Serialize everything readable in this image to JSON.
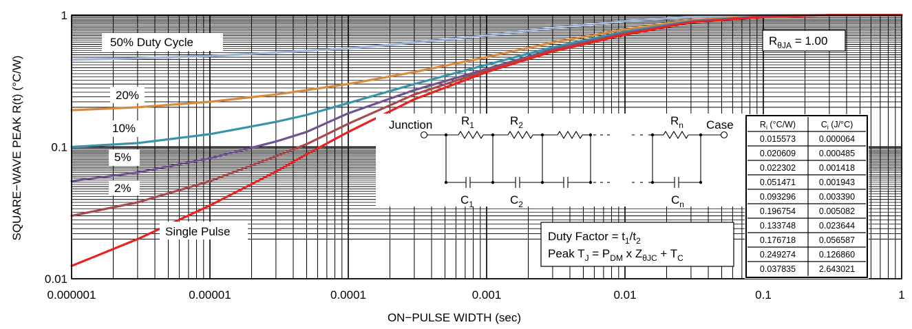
{
  "chart_data": {
    "type": "line",
    "title": "",
    "xlabel": "ON−PULSE WIDTH (sec)",
    "ylabel": "SQUARE−WAVE PEAK R(t) (°C/W)",
    "x_scale": "log",
    "y_scale": "log",
    "xlim": [
      1e-06,
      1
    ],
    "ylim": [
      0.01,
      1
    ],
    "grid": true,
    "x_ticks": [
      "0.000001",
      "0.00001",
      "0.0001",
      "0.001",
      "0.01",
      "0.1",
      "1"
    ],
    "y_ticks": [
      "0.01",
      "0.1",
      "1"
    ],
    "colors": {
      "50% Duty Cycle": "#9fb3d6",
      "20%": "#d88a3c",
      "10%": "#3a93a8",
      "5%": "#6e5391",
      "2%": "#a84a4a",
      "Single Pulse": "#e8231f"
    },
    "series": [
      {
        "name": "50% Duty Cycle",
        "x": [
          1e-06,
          3e-06,
          1e-05,
          3e-05,
          0.0001,
          0.0003,
          0.001,
          0.003,
          0.01,
          0.03,
          0.1,
          0.3,
          1
        ],
        "y": [
          0.46,
          0.47,
          0.49,
          0.52,
          0.56,
          0.62,
          0.7,
          0.8,
          0.9,
          0.97,
          1.0,
          1.0,
          1.0
        ]
      },
      {
        "name": "20%",
        "x": [
          1e-06,
          3e-06,
          1e-05,
          3e-05,
          5e-05,
          0.0001,
          0.0003,
          0.001,
          0.003,
          0.01,
          0.03,
          0.1,
          0.3,
          1
        ],
        "y": [
          0.19,
          0.2,
          0.22,
          0.25,
          0.27,
          0.3,
          0.37,
          0.48,
          0.62,
          0.78,
          0.92,
          0.99,
          1.0,
          1.0
        ]
      },
      {
        "name": "10%",
        "x": [
          1e-06,
          3e-06,
          1e-05,
          3e-05,
          5e-05,
          0.0001,
          0.0003,
          0.001,
          0.003,
          0.01,
          0.03,
          0.1,
          0.3,
          1
        ],
        "y": [
          0.1,
          0.107,
          0.125,
          0.155,
          0.175,
          0.215,
          0.3,
          0.42,
          0.57,
          0.75,
          0.9,
          0.98,
          1.0,
          1.0
        ]
      },
      {
        "name": "5%",
        "x": [
          1e-06,
          3e-06,
          1e-05,
          3e-05,
          5e-05,
          0.0001,
          0.0003,
          0.001,
          0.003,
          0.01,
          0.03,
          0.1,
          0.3,
          1
        ],
        "y": [
          0.055,
          0.064,
          0.082,
          0.11,
          0.13,
          0.18,
          0.27,
          0.39,
          0.55,
          0.73,
          0.89,
          0.98,
          1.0,
          1.0
        ]
      },
      {
        "name": "2%",
        "x": [
          1e-06,
          3e-06,
          1e-05,
          3e-05,
          5e-05,
          0.0001,
          0.0003,
          0.001,
          0.003,
          0.01,
          0.03,
          0.1,
          0.3,
          1
        ],
        "y": [
          0.03,
          0.038,
          0.055,
          0.085,
          0.105,
          0.15,
          0.25,
          0.38,
          0.54,
          0.72,
          0.88,
          0.97,
          1.0,
          1.0
        ]
      },
      {
        "name": "Single Pulse",
        "x": [
          1e-06,
          3e-06,
          1e-05,
          3e-05,
          5e-05,
          0.0001,
          0.0003,
          0.001,
          0.003,
          0.01,
          0.03,
          0.1,
          0.3,
          1
        ],
        "y": [
          0.0125,
          0.02,
          0.036,
          0.065,
          0.088,
          0.13,
          0.23,
          0.37,
          0.53,
          0.71,
          0.88,
          0.97,
          1.0,
          1.0
        ]
      }
    ],
    "annotations": {
      "rtheta_ja": {
        "main": "R",
        "sub": "θJA",
        "rest": " = 1.00"
      },
      "duty_factor": {
        "main": "Duty Factor = t",
        "sub1": "1",
        "mid": "/t",
        "sub2": "2"
      },
      "peak_tj": {
        "a": "Peak T",
        "a_sub": "J",
        "b": " = P",
        "b_sub": "DM",
        "c": " x Z",
        "c_sub": "θJC",
        "d": " + T",
        "d_sub": "C"
      },
      "junction": "Junction",
      "case": "Case",
      "r1": {
        "main": "R",
        "sub": "1"
      },
      "r2": {
        "main": "R",
        "sub": "2"
      },
      "rn": {
        "main": "R",
        "sub": "n"
      },
      "c1": {
        "main": "C",
        "sub": "1"
      },
      "c2": {
        "main": "C",
        "sub": "2"
      },
      "cn": {
        "main": "C",
        "sub": "n"
      }
    },
    "table": {
      "headers": [
        {
          "main": "R",
          "sub": "i",
          "rest": " (°C/W)"
        },
        {
          "main": "C",
          "sub": "i",
          "rest": " (J/°C)"
        }
      ],
      "rows": [
        [
          "0.015573",
          "0.000064"
        ],
        [
          "0.020609",
          "0.000485"
        ],
        [
          "0.022302",
          "0.001418"
        ],
        [
          "0.051471",
          "0.001943"
        ],
        [
          "0.093296",
          "0.003390"
        ],
        [
          "0.196754",
          "0.005082"
        ],
        [
          "0.133748",
          "0.023644"
        ],
        [
          "0.176718",
          "0.056587"
        ],
        [
          "0.249274",
          "0.126860"
        ],
        [
          "0.037835",
          "2.643021"
        ]
      ]
    }
  }
}
